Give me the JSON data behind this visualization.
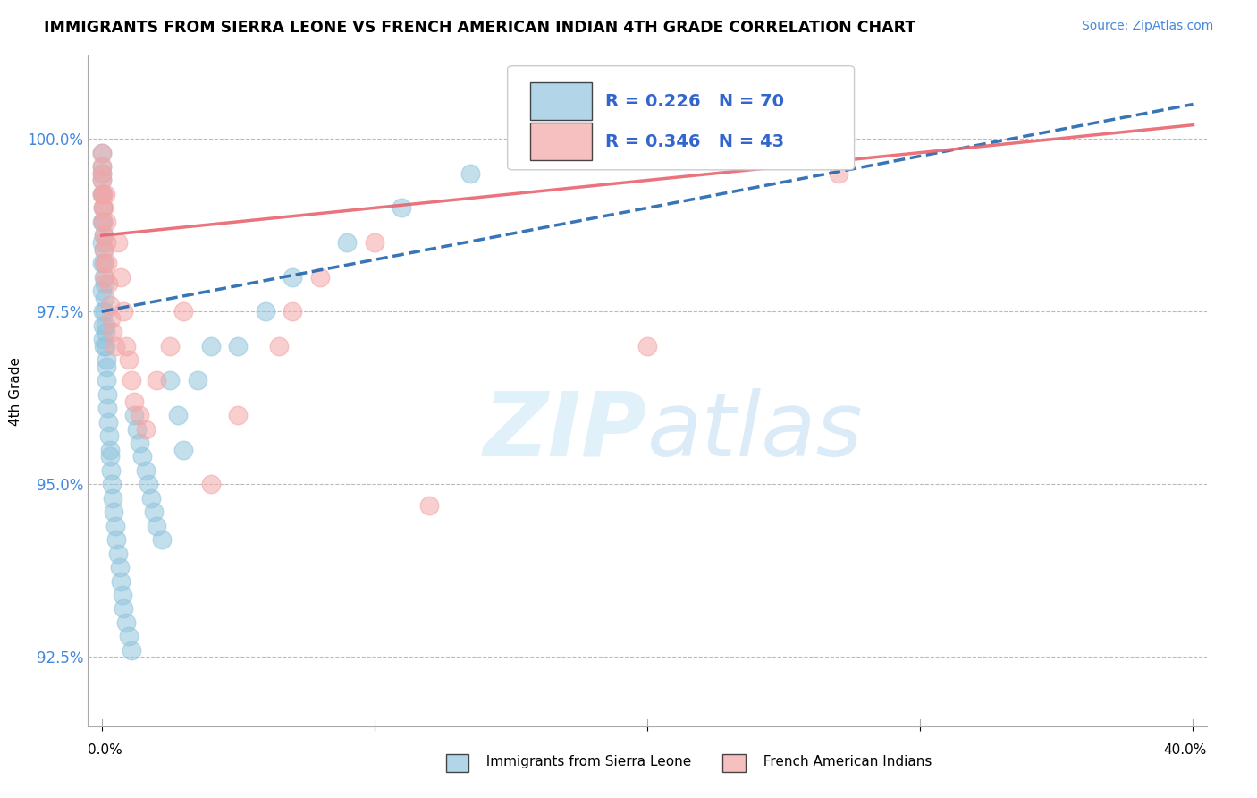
{
  "title": "IMMIGRANTS FROM SIERRA LEONE VS FRENCH AMERICAN INDIAN 4TH GRADE CORRELATION CHART",
  "source_text": "Source: ZipAtlas.com",
  "ylabel": "4th Grade",
  "xlim": [
    0.0,
    40.0
  ],
  "ylim": [
    91.5,
    101.2
  ],
  "yticks": [
    92.5,
    95.0,
    97.5,
    100.0
  ],
  "ytick_labels": [
    "92.5%",
    "95.0%",
    "97.5%",
    "100.0%"
  ],
  "blue_R": 0.226,
  "blue_N": 70,
  "pink_R": 0.346,
  "pink_N": 43,
  "blue_color": "#92c5de",
  "pink_color": "#f4a6a6",
  "blue_line_color": "#2166ac",
  "pink_line_color": "#e8646e",
  "watermark_zip": "ZIP",
  "watermark_atlas": "atlas",
  "legend_label_blue": "Immigrants from Sierra Leone",
  "legend_label_pink": "French American Indians",
  "blue_scatter_x": [
    0.0,
    0.0,
    0.0,
    0.0,
    0.0,
    0.01,
    0.01,
    0.02,
    0.02,
    0.03,
    0.03,
    0.04,
    0.04,
    0.05,
    0.05,
    0.06,
    0.07,
    0.08,
    0.08,
    0.09,
    0.1,
    0.11,
    0.12,
    0.13,
    0.14,
    0.15,
    0.16,
    0.17,
    0.18,
    0.2,
    0.22,
    0.25,
    0.28,
    0.3,
    0.32,
    0.35,
    0.38,
    0.4,
    0.45,
    0.5,
    0.55,
    0.6,
    0.65,
    0.7,
    0.75,
    0.8,
    0.9,
    1.0,
    1.1,
    1.2,
    1.3,
    1.4,
    1.5,
    1.6,
    1.7,
    1.8,
    1.9,
    2.0,
    2.2,
    2.5,
    2.8,
    3.0,
    3.5,
    4.0,
    5.0,
    6.0,
    7.0,
    9.0,
    11.0,
    13.5
  ],
  "blue_scatter_y": [
    99.8,
    99.5,
    99.2,
    98.8,
    98.5,
    99.6,
    98.2,
    99.4,
    97.8,
    99.2,
    97.5,
    99.0,
    97.3,
    98.8,
    97.1,
    98.6,
    98.4,
    98.2,
    97.0,
    98.0,
    97.9,
    97.7,
    97.5,
    97.3,
    97.2,
    97.0,
    96.8,
    96.7,
    96.5,
    96.3,
    96.1,
    95.9,
    95.7,
    95.5,
    95.4,
    95.2,
    95.0,
    94.8,
    94.6,
    94.4,
    94.2,
    94.0,
    93.8,
    93.6,
    93.4,
    93.2,
    93.0,
    92.8,
    92.6,
    96.0,
    95.8,
    95.6,
    95.4,
    95.2,
    95.0,
    94.8,
    94.6,
    94.4,
    94.2,
    96.5,
    96.0,
    95.5,
    96.5,
    97.0,
    97.0,
    97.5,
    98.0,
    98.5,
    99.0,
    99.5
  ],
  "pink_scatter_x": [
    0.0,
    0.0,
    0.0,
    0.01,
    0.02,
    0.03,
    0.04,
    0.05,
    0.06,
    0.07,
    0.08,
    0.1,
    0.12,
    0.14,
    0.16,
    0.18,
    0.2,
    0.25,
    0.3,
    0.35,
    0.4,
    0.5,
    0.6,
    0.7,
    0.8,
    0.9,
    1.0,
    1.1,
    1.2,
    1.4,
    1.6,
    2.0,
    2.5,
    3.0,
    4.0,
    5.0,
    6.5,
    7.0,
    8.0,
    10.0,
    12.0,
    20.0,
    27.0
  ],
  "pink_scatter_y": [
    99.8,
    99.5,
    99.2,
    99.6,
    99.4,
    99.2,
    99.0,
    98.8,
    98.6,
    99.0,
    98.4,
    98.2,
    98.0,
    99.2,
    98.8,
    98.5,
    98.2,
    97.9,
    97.6,
    97.4,
    97.2,
    97.0,
    98.5,
    98.0,
    97.5,
    97.0,
    96.8,
    96.5,
    96.2,
    96.0,
    95.8,
    96.5,
    97.0,
    97.5,
    95.0,
    96.0,
    97.0,
    97.5,
    98.0,
    98.5,
    94.7,
    97.0,
    99.5
  ],
  "blue_trendline_x": [
    0.0,
    40.0
  ],
  "blue_trendline_y": [
    97.5,
    100.5
  ],
  "pink_trendline_x": [
    0.0,
    40.0
  ],
  "pink_trendline_y": [
    98.6,
    100.2
  ]
}
